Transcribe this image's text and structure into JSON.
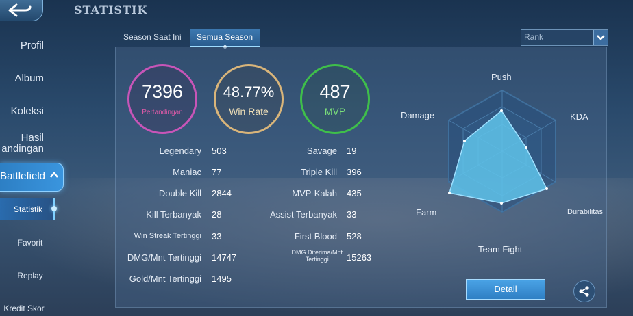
{
  "header": {
    "title": "STATISTIK"
  },
  "sidebar": {
    "items": [
      {
        "label": "Profil"
      },
      {
        "label": "Album"
      },
      {
        "label": "Koleksi"
      },
      {
        "label_line1": "Hasil",
        "label_line2": "andingan"
      },
      {
        "label": "Battlefield"
      }
    ],
    "sub_items": [
      {
        "label": "Statistik"
      },
      {
        "label": "Favorit"
      },
      {
        "label": "Replay"
      },
      {
        "label": "Kredit Skor"
      }
    ]
  },
  "tabs": [
    {
      "label": "Season Saat Ini",
      "active": false
    },
    {
      "label": "Semua Season",
      "active": true
    }
  ],
  "filter": {
    "selected": "Rank"
  },
  "summary": [
    {
      "value": "7396",
      "label": "Pertandingan",
      "color": "#c855b8"
    },
    {
      "value": "48.77%",
      "label": "Win Rate",
      "color": "#d9b57a"
    },
    {
      "value": "487",
      "label": "MVP",
      "color": "#3fbf4a"
    }
  ],
  "stats_left": [
    {
      "label": "Legendary",
      "value": "503"
    },
    {
      "label": "Maniac",
      "value": "77"
    },
    {
      "label": "Double Kill",
      "value": "2844"
    },
    {
      "label": "Kill Terbanyak",
      "value": "28"
    },
    {
      "label": "Win Streak Tertinggi",
      "value": "33"
    },
    {
      "label": "DMG/Mnt Tertinggi",
      "value": "14747"
    },
    {
      "label": "Gold/Mnt Tertinggi",
      "value": "1495"
    }
  ],
  "stats_right": [
    {
      "label": "Savage",
      "value": "19"
    },
    {
      "label": "Triple Kill",
      "value": "396"
    },
    {
      "label": "MVP-Kalah",
      "value": "435"
    },
    {
      "label": "Assist Terbanyak",
      "value": "33"
    },
    {
      "label": "First Blood",
      "value": "528"
    },
    {
      "label_line1": "DMG Diterima/Mnt",
      "label_line2": "Tertinggi",
      "value": "15263"
    }
  ],
  "radar": {
    "axes": [
      "Push",
      "KDA",
      "Durabilitas",
      "Team Fight",
      "Farm",
      "Damage"
    ]
  },
  "actions": {
    "detail_label": "Detail"
  },
  "icons": [
    "back-arrow-icon",
    "chevron-up-icon",
    "dropdown-arrow-icon",
    "share-icon"
  ],
  "colors": {
    "accent": "#3a95de",
    "radar_fill": "#5fc3ea"
  }
}
